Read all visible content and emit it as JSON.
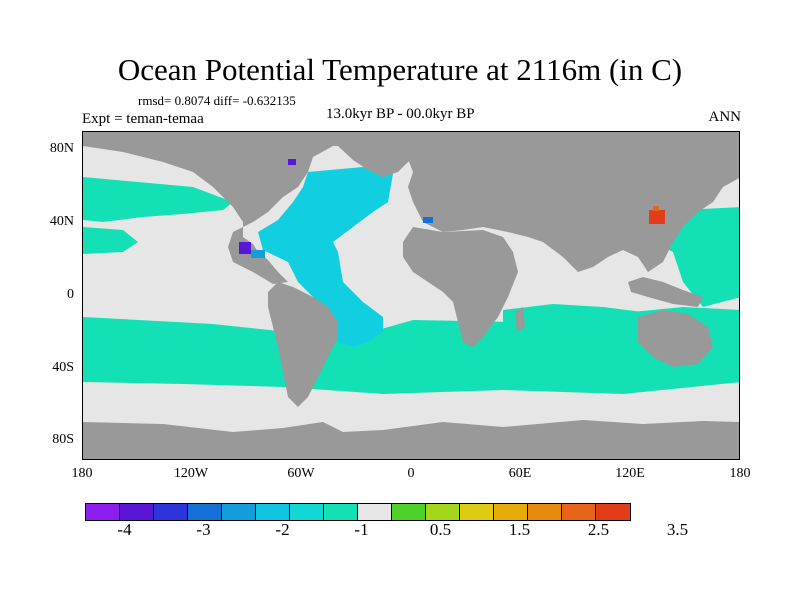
{
  "title": "Ocean Potential Temperature at 2116m (in C)",
  "stats": "rmsd= 0.8074 diff= -0.632135",
  "period": "13.0kyr BP - 00.0kyr BP",
  "experiment": "Expt = teman-temaa",
  "season": "ANN",
  "y_axis_labels": [
    "80N",
    "40N",
    "0",
    "40S",
    "80S"
  ],
  "x_axis_labels": [
    "180",
    "120W",
    "60W",
    "0",
    "60E",
    "120E",
    "180"
  ],
  "colorbar": {
    "labels": [
      "-4",
      "-3",
      "-2",
      "-1",
      "0.5",
      "1.5",
      "2.5",
      "3.5"
    ],
    "colors": [
      "#8c1ff0",
      "#5a16d6",
      "#2c35d9",
      "#1570d8",
      "#119fdc",
      "#10c3e0",
      "#12d8d3",
      "#14e0b6",
      "#e6e6e6",
      "#4ed22a",
      "#a6d61c",
      "#dccc12",
      "#e6ad0a",
      "#e68a10",
      "#e6641a",
      "#e03d18"
    ]
  },
  "map_colors": {
    "land": "#999999",
    "ocean_small_change": "#e6e6e6",
    "ocean_minus_1_5": "#11cfe0",
    "ocean_minus_1": "#14e0b6",
    "warm_anomaly": "#e03d18"
  }
}
